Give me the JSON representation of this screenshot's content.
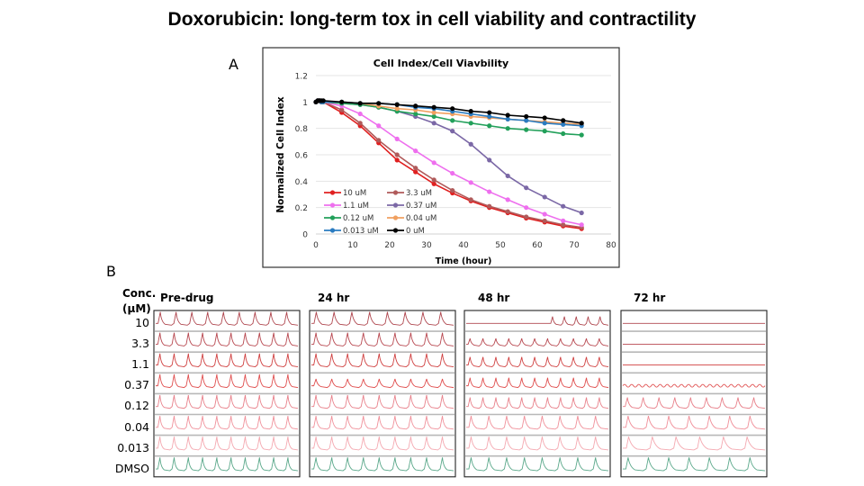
{
  "page": {
    "title": "Doxorubicin: long-term tox in cell viability and contractility",
    "label_a": "A",
    "label_b": "B"
  },
  "chart_data": [
    {
      "type": "line",
      "title": "Cell Index/Cell Viavbility",
      "xlabel": "Time (hour)",
      "ylabel": "Normalized Cell Index",
      "xlim": [
        0,
        80
      ],
      "ylim": [
        0,
        1.2
      ],
      "xticks": [
        "0",
        "10",
        "20",
        "30",
        "40",
        "50",
        "60",
        "70",
        "80"
      ],
      "yticks": [
        "0",
        "0.2",
        "0.4",
        "0.6",
        "0.8",
        "1",
        "1.2"
      ],
      "grid": "horizontal",
      "legend_position": "bottom-left-inside",
      "x": [
        0,
        0.5,
        1,
        1.5,
        2,
        7,
        12,
        17,
        22,
        27,
        32,
        37,
        42,
        47,
        52,
        57,
        62,
        67,
        72
      ],
      "series": [
        {
          "name": "10 uM",
          "color": "#e02020",
          "values": [
            1.0,
            1.01,
            1.01,
            1.0,
            1.0,
            0.92,
            0.82,
            0.69,
            0.56,
            0.47,
            0.38,
            0.31,
            0.25,
            0.2,
            0.16,
            0.12,
            0.09,
            0.06,
            0.04
          ]
        },
        {
          "name": "3.3 uM",
          "color": "#b05a5a",
          "values": [
            1.0,
            1.01,
            1.01,
            1.0,
            1.0,
            0.94,
            0.84,
            0.71,
            0.6,
            0.5,
            0.41,
            0.33,
            0.26,
            0.21,
            0.17,
            0.13,
            0.1,
            0.07,
            0.05
          ]
        },
        {
          "name": "1.1 uM",
          "color": "#ee6fee",
          "values": [
            1.0,
            1.01,
            1.01,
            1.0,
            1.0,
            0.97,
            0.91,
            0.82,
            0.72,
            0.63,
            0.54,
            0.46,
            0.39,
            0.32,
            0.26,
            0.2,
            0.15,
            0.1,
            0.07
          ]
        },
        {
          "name": "0.37 uM",
          "color": "#7b68a6",
          "values": [
            1.0,
            1.01,
            1.01,
            1.0,
            1.0,
            0.99,
            0.98,
            0.96,
            0.93,
            0.89,
            0.84,
            0.78,
            0.68,
            0.56,
            0.44,
            0.35,
            0.28,
            0.21,
            0.16
          ]
        },
        {
          "name": "0.12 uM",
          "color": "#22a05a",
          "values": [
            1.0,
            1.01,
            1.01,
            1.0,
            1.0,
            0.99,
            0.98,
            0.96,
            0.93,
            0.91,
            0.89,
            0.86,
            0.84,
            0.82,
            0.8,
            0.79,
            0.78,
            0.76,
            0.75
          ]
        },
        {
          "name": "0.04 uM",
          "color": "#f0a060",
          "values": [
            1.0,
            1.01,
            1.01,
            1.0,
            1.0,
            1.0,
            0.99,
            0.97,
            0.95,
            0.94,
            0.92,
            0.91,
            0.89,
            0.88,
            0.87,
            0.86,
            0.85,
            0.84,
            0.83
          ]
        },
        {
          "name": "0.013 uM",
          "color": "#2a7bc0",
          "values": [
            1.0,
            1.01,
            1.01,
            1.0,
            1.0,
            1.0,
            0.99,
            0.99,
            0.98,
            0.96,
            0.95,
            0.93,
            0.91,
            0.89,
            0.87,
            0.86,
            0.84,
            0.83,
            0.82
          ]
        },
        {
          "name": "0 uM",
          "color": "#000000",
          "values": [
            1.0,
            1.01,
            1.01,
            1.01,
            1.01,
            1.0,
            0.99,
            0.99,
            0.98,
            0.97,
            0.96,
            0.95,
            0.93,
            0.92,
            0.9,
            0.89,
            0.88,
            0.86,
            0.84
          ]
        }
      ]
    },
    {
      "type": "traces",
      "row_header": [
        "Conc.",
        "(μM)"
      ],
      "rows": [
        "10",
        "3.3",
        "1.1",
        "0.37",
        "0.12",
        "0.04",
        "0.013",
        "DMSO"
      ],
      "row_colors": [
        "#b04850",
        "#b84850",
        "#d04040",
        "#e05050",
        "#e8808a",
        "#f0909a",
        "#f4a8b0",
        "#5aa88a"
      ],
      "timepoints": [
        "Pre-drug",
        "24 hr",
        "48 hr",
        "72 hr"
      ],
      "beats_per_panel": [
        [
          9,
          10,
          10,
          10,
          10,
          10,
          10,
          10
        ],
        [
          8,
          9,
          9,
          9,
          9,
          9,
          9,
          9
        ],
        [
          5,
          11,
          11,
          11,
          11,
          8,
          8,
          8
        ],
        [
          0,
          0,
          0,
          20,
          9,
          7,
          6,
          7
        ]
      ],
      "beat_amplitude": [
        [
          1,
          1,
          1,
          1,
          1,
          1,
          1,
          1
        ],
        [
          1,
          1,
          1,
          0.6,
          1,
          1,
          1,
          1
        ],
        [
          0.6,
          0.5,
          0.7,
          0.7,
          0.8,
          1,
          1,
          1
        ],
        [
          0,
          0,
          0,
          0.25,
          0.8,
          1,
          1,
          1
        ]
      ]
    }
  ]
}
